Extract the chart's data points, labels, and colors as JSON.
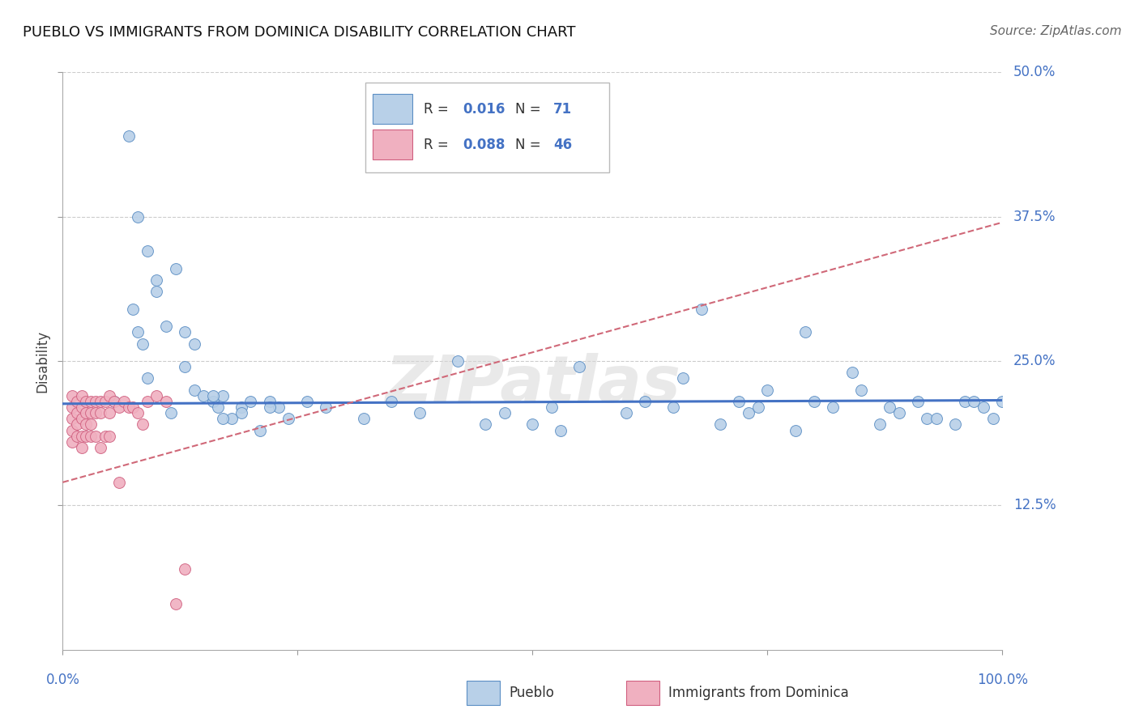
{
  "title": "PUEBLO VS IMMIGRANTS FROM DOMINICA DISABILITY CORRELATION CHART",
  "source": "Source: ZipAtlas.com",
  "ylabel": "Disability",
  "watermark": "ZIPatlas",
  "xlim": [
    0.0,
    1.0
  ],
  "ylim": [
    0.0,
    0.5
  ],
  "xticks": [
    0.0,
    0.25,
    0.5,
    0.75,
    1.0
  ],
  "yticks": [
    0.125,
    0.25,
    0.375,
    0.5
  ],
  "ytick_labels": [
    "12.5%",
    "25.0%",
    "37.5%",
    "50.0%"
  ],
  "grid_color": "#cccccc",
  "blue_fill": "#b8d0e8",
  "blue_edge": "#5b8ec4",
  "pink_fill": "#f0b0c0",
  "pink_edge": "#d06080",
  "blue_line_color": "#4472c4",
  "pink_line_color": "#d06878",
  "legend_label1": "Pueblo",
  "legend_label2": "Immigrants from Dominica",
  "pueblo_x": [
    0.055,
    0.075,
    0.08,
    0.085,
    0.09,
    0.1,
    0.11,
    0.115,
    0.13,
    0.14,
    0.15,
    0.16,
    0.165,
    0.17,
    0.18,
    0.19,
    0.2,
    0.21,
    0.22,
    0.23,
    0.24,
    0.26,
    0.28,
    0.32,
    0.35,
    0.38,
    0.42,
    0.45,
    0.47,
    0.5,
    0.52,
    0.53,
    0.6,
    0.62,
    0.65,
    0.66,
    0.7,
    0.72,
    0.73,
    0.74,
    0.75,
    0.78,
    0.8,
    0.82,
    0.85,
    0.87,
    0.88,
    0.89,
    0.91,
    0.92,
    0.93,
    0.95,
    0.96,
    0.97,
    0.98,
    0.99,
    1.0,
    0.55,
    0.68,
    0.79,
    0.84,
    0.07,
    0.08,
    0.09,
    0.12,
    0.13,
    0.14,
    0.19,
    0.22,
    0.1,
    0.16,
    0.17
  ],
  "pueblo_y": [
    0.215,
    0.295,
    0.275,
    0.265,
    0.235,
    0.31,
    0.28,
    0.205,
    0.245,
    0.225,
    0.22,
    0.215,
    0.21,
    0.22,
    0.2,
    0.21,
    0.215,
    0.19,
    0.215,
    0.21,
    0.2,
    0.215,
    0.21,
    0.2,
    0.215,
    0.205,
    0.25,
    0.195,
    0.205,
    0.195,
    0.21,
    0.19,
    0.205,
    0.215,
    0.21,
    0.235,
    0.195,
    0.215,
    0.205,
    0.21,
    0.225,
    0.19,
    0.215,
    0.21,
    0.225,
    0.195,
    0.21,
    0.205,
    0.215,
    0.2,
    0.2,
    0.195,
    0.215,
    0.215,
    0.21,
    0.2,
    0.215,
    0.245,
    0.295,
    0.275,
    0.24,
    0.445,
    0.375,
    0.345,
    0.33,
    0.275,
    0.265,
    0.205,
    0.21,
    0.32,
    0.22,
    0.2
  ],
  "dominica_x": [
    0.01,
    0.01,
    0.01,
    0.01,
    0.01,
    0.015,
    0.015,
    0.015,
    0.015,
    0.02,
    0.02,
    0.02,
    0.02,
    0.02,
    0.025,
    0.025,
    0.025,
    0.025,
    0.03,
    0.03,
    0.03,
    0.03,
    0.035,
    0.035,
    0.035,
    0.04,
    0.04,
    0.04,
    0.045,
    0.045,
    0.05,
    0.05,
    0.05,
    0.055,
    0.06,
    0.065,
    0.07,
    0.075,
    0.08,
    0.085,
    0.09,
    0.1,
    0.11,
    0.12,
    0.13,
    0.06
  ],
  "dominica_y": [
    0.22,
    0.21,
    0.2,
    0.19,
    0.18,
    0.215,
    0.205,
    0.195,
    0.185,
    0.22,
    0.21,
    0.2,
    0.185,
    0.175,
    0.215,
    0.205,
    0.195,
    0.185,
    0.215,
    0.205,
    0.195,
    0.185,
    0.215,
    0.205,
    0.185,
    0.215,
    0.205,
    0.175,
    0.215,
    0.185,
    0.22,
    0.205,
    0.185,
    0.215,
    0.21,
    0.215,
    0.21,
    0.21,
    0.205,
    0.195,
    0.215,
    0.22,
    0.215,
    0.04,
    0.07,
    0.145
  ],
  "blue_trend_x": [
    0.0,
    1.0
  ],
  "blue_trend_y": [
    0.213,
    0.216
  ],
  "pink_trend_x": [
    0.0,
    1.0
  ],
  "pink_trend_y": [
    0.145,
    0.37
  ]
}
